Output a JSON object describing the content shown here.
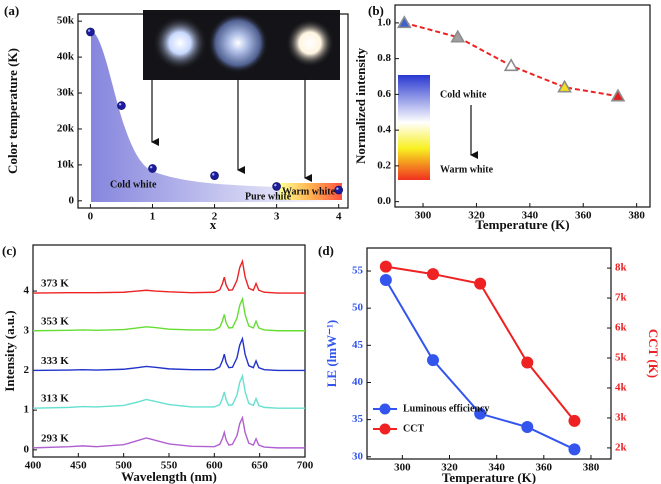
{
  "chart_data": [
    {
      "type": "scatter",
      "panel_label": "(a)",
      "xlabel": "x",
      "ylabel": "Color temperature (K)",
      "x": [
        0,
        0.5,
        1,
        2,
        3,
        4
      ],
      "values": [
        47000,
        26500,
        9000,
        7000,
        4000,
        3000
      ],
      "color": "#1c1c9c",
      "xlim": [
        -0.2,
        4.15
      ],
      "ylim": [
        -2000,
        52000
      ],
      "xticks": [
        0,
        1,
        2,
        3,
        4
      ],
      "yticks": [
        0,
        {
          "value": 10000,
          "label": "10k"
        },
        {
          "value": 20000,
          "label": "20k"
        },
        {
          "value": 30000,
          "label": "30k"
        },
        {
          "value": 40000,
          "label": "40k"
        },
        {
          "value": 50000,
          "label": "50k"
        }
      ],
      "annotations": [
        "Cold white",
        "Pure white",
        "Warm white"
      ]
    },
    {
      "type": "line",
      "panel_label": "(b)",
      "xlabel": "Temperature (K)",
      "ylabel": "Normalized intensity",
      "x": [
        293,
        313,
        333,
        353,
        373
      ],
      "values": [
        1.0,
        0.92,
        0.76,
        0.64,
        0.59
      ],
      "line_color": "#ee2222",
      "line_style": "dashed",
      "marker": "triangle",
      "marker_edge": "#8c8c8c",
      "point_colors": [
        "#4060d0",
        "#a0a0a0",
        "#ffffff",
        "#f0e020",
        "#e02020"
      ],
      "xlim": [
        289.5,
        385
      ],
      "ylim": [
        -0.03,
        1.1
      ],
      "xticks": [
        300,
        320,
        340,
        360,
        380
      ],
      "yticks": [
        {
          "value": 0,
          "label": "0.0"
        },
        0.2,
        0.4,
        0.6,
        0.8,
        {
          "value": 1,
          "label": "1.0"
        }
      ],
      "annotations": [
        "Cold white",
        "Warm white"
      ]
    },
    {
      "type": "line",
      "panel_label": "(c)",
      "xlabel": "Wavelength (nm)",
      "ylabel": "Intensity (a.u.)",
      "x": [
        400,
        440,
        455,
        470,
        500,
        515,
        525,
        535,
        550,
        575,
        600,
        606,
        609,
        611,
        613,
        616,
        620,
        625,
        628,
        631,
        634,
        638,
        643,
        646,
        649,
        655,
        670,
        700
      ],
      "series": [
        {
          "name": "373 K",
          "color": "#ee2222",
          "values": [
            3.95,
            3.96,
            3.96,
            3.96,
            3.97,
            4.0,
            4.02,
            4.0,
            3.98,
            3.96,
            3.97,
            4.03,
            4.19,
            4.35,
            4.15,
            4.02,
            4.03,
            4.27,
            4.59,
            4.75,
            4.35,
            4.07,
            4.02,
            4.19,
            4.02,
            3.97,
            3.95,
            3.95
          ]
        },
        {
          "name": "353 K",
          "color": "#66dd33",
          "values": [
            3.0,
            3.01,
            3.02,
            3.01,
            3.03,
            3.07,
            3.1,
            3.08,
            3.04,
            3.02,
            3.02,
            3.09,
            3.25,
            3.41,
            3.2,
            3.07,
            3.08,
            3.32,
            3.64,
            3.8,
            3.4,
            3.12,
            3.07,
            3.24,
            3.07,
            3.02,
            3.0,
            3.0
          ]
        },
        {
          "name": "333 K",
          "color": "#2233cc",
          "values": [
            2.0,
            2.01,
            2.02,
            2.01,
            2.03,
            2.07,
            2.1,
            2.08,
            2.04,
            2.02,
            2.02,
            2.09,
            2.25,
            2.41,
            2.2,
            2.07,
            2.08,
            2.32,
            2.64,
            2.8,
            2.4,
            2.12,
            2.07,
            2.24,
            2.07,
            2.02,
            2.0,
            2.0
          ]
        },
        {
          "name": "313 K",
          "color": "#66e0d0",
          "values": [
            1.05,
            1.07,
            1.09,
            1.08,
            1.12,
            1.2,
            1.27,
            1.22,
            1.14,
            1.08,
            1.08,
            1.14,
            1.3,
            1.46,
            1.26,
            1.12,
            1.14,
            1.38,
            1.7,
            1.86,
            1.46,
            1.17,
            1.12,
            1.29,
            1.12,
            1.07,
            1.05,
            1.05
          ]
        },
        {
          "name": "293 K",
          "color": "#b060d0",
          "values": [
            0.05,
            0.08,
            0.1,
            0.08,
            0.13,
            0.23,
            0.3,
            0.24,
            0.15,
            0.09,
            0.08,
            0.14,
            0.29,
            0.44,
            0.25,
            0.12,
            0.14,
            0.36,
            0.66,
            0.81,
            0.43,
            0.17,
            0.12,
            0.28,
            0.12,
            0.07,
            0.05,
            0.05
          ]
        }
      ],
      "xlim": [
        400,
        700
      ],
      "ylim": [
        -0.18,
        5.16
      ],
      "xticks": [
        400,
        450,
        500,
        550,
        600,
        650,
        700
      ],
      "yticks": [
        0,
        1,
        2,
        3,
        4
      ]
    },
    {
      "type": "line",
      "panel_label": "(d)",
      "xlabel": "Temperature (K)",
      "ylabel": "LE (lmW⁻¹)",
      "y2label": "CCT (K)",
      "x": [
        293,
        313,
        333,
        353,
        373
      ],
      "marker": "circle",
      "series": [
        {
          "name": "Luminous efficiency",
          "color": "#3355ee",
          "axis": "y",
          "values": [
            53.8,
            43,
            35.8,
            34,
            31
          ]
        },
        {
          "name": "CCT",
          "color": "#ee2222",
          "axis": "y2",
          "values": [
            8050,
            7800,
            7480,
            4850,
            2900
          ]
        }
      ],
      "xlim": [
        285,
        388.5
      ],
      "ylim": [
        29.7,
        58.1
      ],
      "xticks": [
        300,
        320,
        340,
        360,
        380
      ],
      "yticks": [
        30,
        35,
        40,
        45,
        50,
        55
      ],
      "y2lim": [
        1630,
        8670
      ],
      "y2ticks": [
        {
          "value": 2000,
          "label": "2k"
        },
        {
          "value": 3000,
          "label": "3k"
        },
        {
          "value": 4000,
          "label": "4k"
        },
        {
          "value": 5000,
          "label": "5k"
        },
        {
          "value": 6000,
          "label": "6k"
        },
        {
          "value": 7000,
          "label": "7k"
        },
        {
          "value": 8000,
          "label": "8k"
        }
      ],
      "legend": "lower left"
    }
  ]
}
